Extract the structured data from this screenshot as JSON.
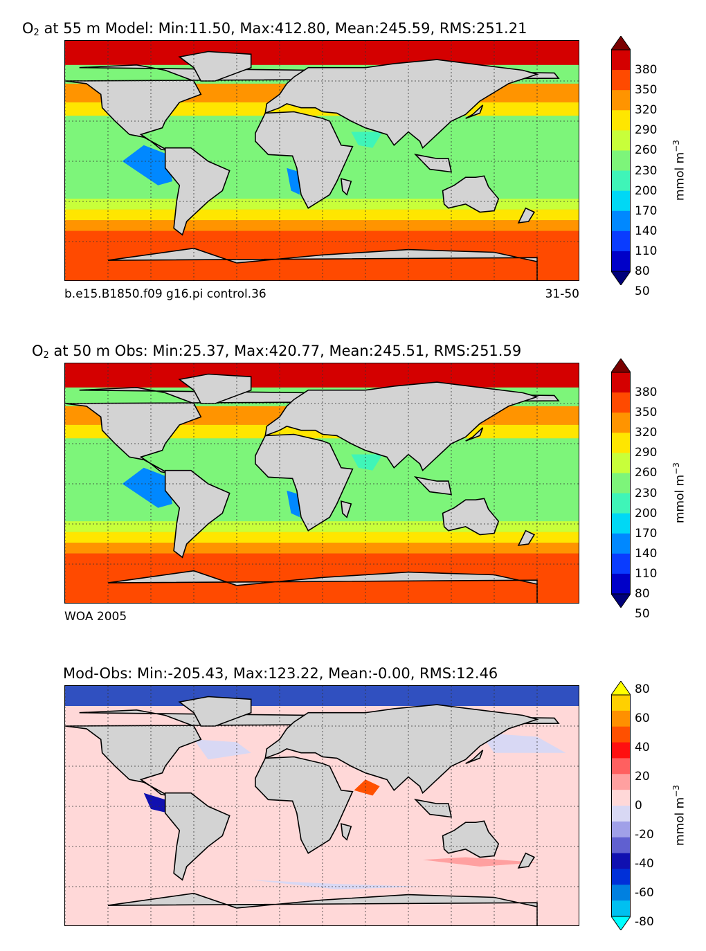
{
  "chart_data": [
    {
      "type": "heatmap",
      "title_species": "O",
      "title_sub": "2",
      "title_rest": " at 55 m Model: Min:11.50, Max:412.80, Mean:245.59, RMS:251.21",
      "caption_left": "b.e15.B1850.f09 g16.pi control.36",
      "caption_right": "31-50",
      "colorbar": {
        "ticks": [
          "380",
          "350",
          "320",
          "290",
          "260",
          "230",
          "200",
          "170",
          "140",
          "110",
          "80",
          "50"
        ],
        "colors": [
          "#7a0000",
          "#d40000",
          "#ff4a00",
          "#ff9400",
          "#ffe600",
          "#c8ff3a",
          "#7df57a",
          "#3ff5b8",
          "#00d8f5",
          "#0088ff",
          "#0a3cff",
          "#0000c8",
          "#00007a"
        ],
        "unit_base": "mmol m",
        "unit_sup": "−3",
        "extend": "both"
      },
      "map_colors": {
        "land": "#d3d3d3",
        "ocean": "#7df57a",
        "cold": "#ff4a00",
        "mid": "#ffe600",
        "low": "#0088ff",
        "polar": "#d40000"
      },
      "grid": true
    },
    {
      "type": "heatmap",
      "title_species": "O",
      "title_sub": "2",
      "title_rest": " at 50 m Obs: Min:25.37, Max:420.77, Mean:245.51, RMS:251.59",
      "caption_left": "WOA 2005",
      "caption_right": "",
      "colorbar": {
        "ticks": [
          "380",
          "350",
          "320",
          "290",
          "260",
          "230",
          "200",
          "170",
          "140",
          "110",
          "80",
          "50"
        ],
        "colors": [
          "#7a0000",
          "#d40000",
          "#ff4a00",
          "#ff9400",
          "#ffe600",
          "#c8ff3a",
          "#7df57a",
          "#3ff5b8",
          "#00d8f5",
          "#0088ff",
          "#0a3cff",
          "#0000c8",
          "#00007a"
        ],
        "unit_base": "mmol m",
        "unit_sup": "−3",
        "extend": "both"
      },
      "map_colors": {
        "land": "#d3d3d3",
        "ocean": "#7df57a",
        "cold": "#ff4a00",
        "mid": "#ffe600",
        "low": "#0088ff",
        "polar": "#d40000"
      },
      "grid": true
    },
    {
      "type": "heatmap",
      "title_species": "",
      "title_sub": "",
      "title_rest": "Mod-Obs: Min:-205.43, Max:123.22, Mean:-0.00, RMS:12.46",
      "caption_left": "",
      "caption_right": "",
      "colorbar": {
        "ticks": [
          "80",
          "60",
          "40",
          "20",
          "0",
          "-20",
          "-40",
          "-60",
          "-80"
        ],
        "colors": [
          "#ffff00",
          "#ffd000",
          "#ff9000",
          "#ff5000",
          "#ff1010",
          "#ff6060",
          "#ffa0a0",
          "#ffd8d8",
          "#d8d8f4",
          "#a0a0e8",
          "#6060d0",
          "#1010b0",
          "#0030d8",
          "#0080e0",
          "#00c0f0",
          "#00ffff"
        ],
        "unit_base": "mmol m",
        "unit_sup": "−3",
        "extend": "both"
      },
      "map_colors": {
        "land": "#d3d3d3",
        "ocean": "#ffd8d8",
        "cold": "#d8d8f4",
        "mid": "#ffa0a0",
        "low": "#1010b0",
        "polar": "#3050c0"
      },
      "grid": true
    }
  ]
}
